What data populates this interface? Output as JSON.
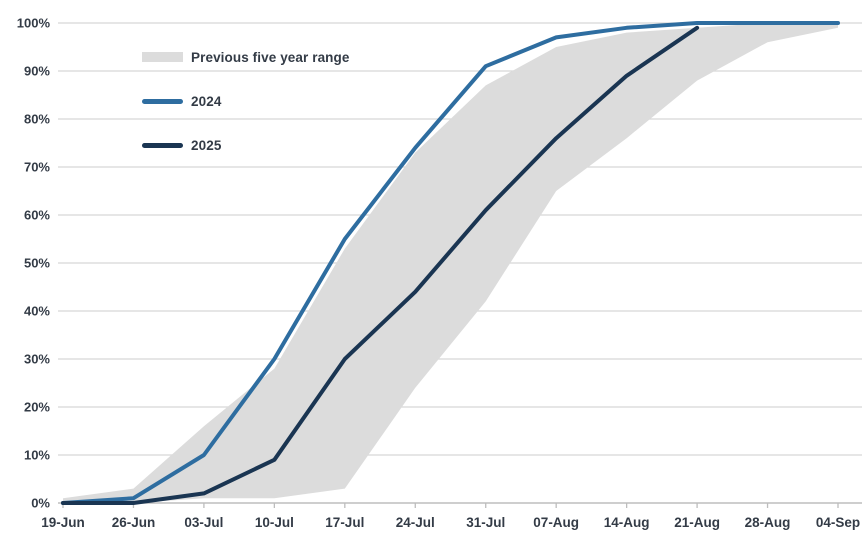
{
  "chart_data": {
    "type": "line",
    "title": "",
    "xlabel": "",
    "ylabel": "",
    "ylim": [
      0,
      100
    ],
    "grid": "horizontal",
    "legend_position": "top-left-inside",
    "categories": [
      "19-Jun",
      "26-Jun",
      "03-Jul",
      "10-Jul",
      "17-Jul",
      "24-Jul",
      "31-Jul",
      "07-Aug",
      "14-Aug",
      "21-Aug",
      "28-Aug",
      "04-Sep"
    ],
    "yticks": [
      "0%",
      "10%",
      "20%",
      "30%",
      "40%",
      "50%",
      "60%",
      "70%",
      "80%",
      "90%",
      "100%"
    ],
    "band": {
      "name": "Previous five year range",
      "color": "#DCDCDC",
      "max": [
        1,
        3,
        16,
        28,
        53,
        73,
        87,
        95,
        98,
        99,
        100,
        100
      ],
      "min": [
        0,
        0,
        1,
        1,
        3,
        24,
        42,
        65,
        76,
        88,
        96,
        99
      ]
    },
    "series": [
      {
        "name": "2024",
        "color": "#2E6DA0",
        "values": [
          0,
          1,
          10,
          30,
          55,
          74,
          91,
          97,
          99,
          100,
          100,
          100
        ]
      },
      {
        "name": "2025",
        "color": "#1A3552",
        "values": [
          0,
          0,
          2,
          9,
          30,
          44,
          61,
          76,
          89,
          99,
          null,
          null
        ]
      }
    ]
  },
  "styles": {
    "text_color": "#333B46",
    "gridline_color": "#D6D6D6",
    "axis_color": "#BDBDBD",
    "background": "#FFFFFF"
  }
}
